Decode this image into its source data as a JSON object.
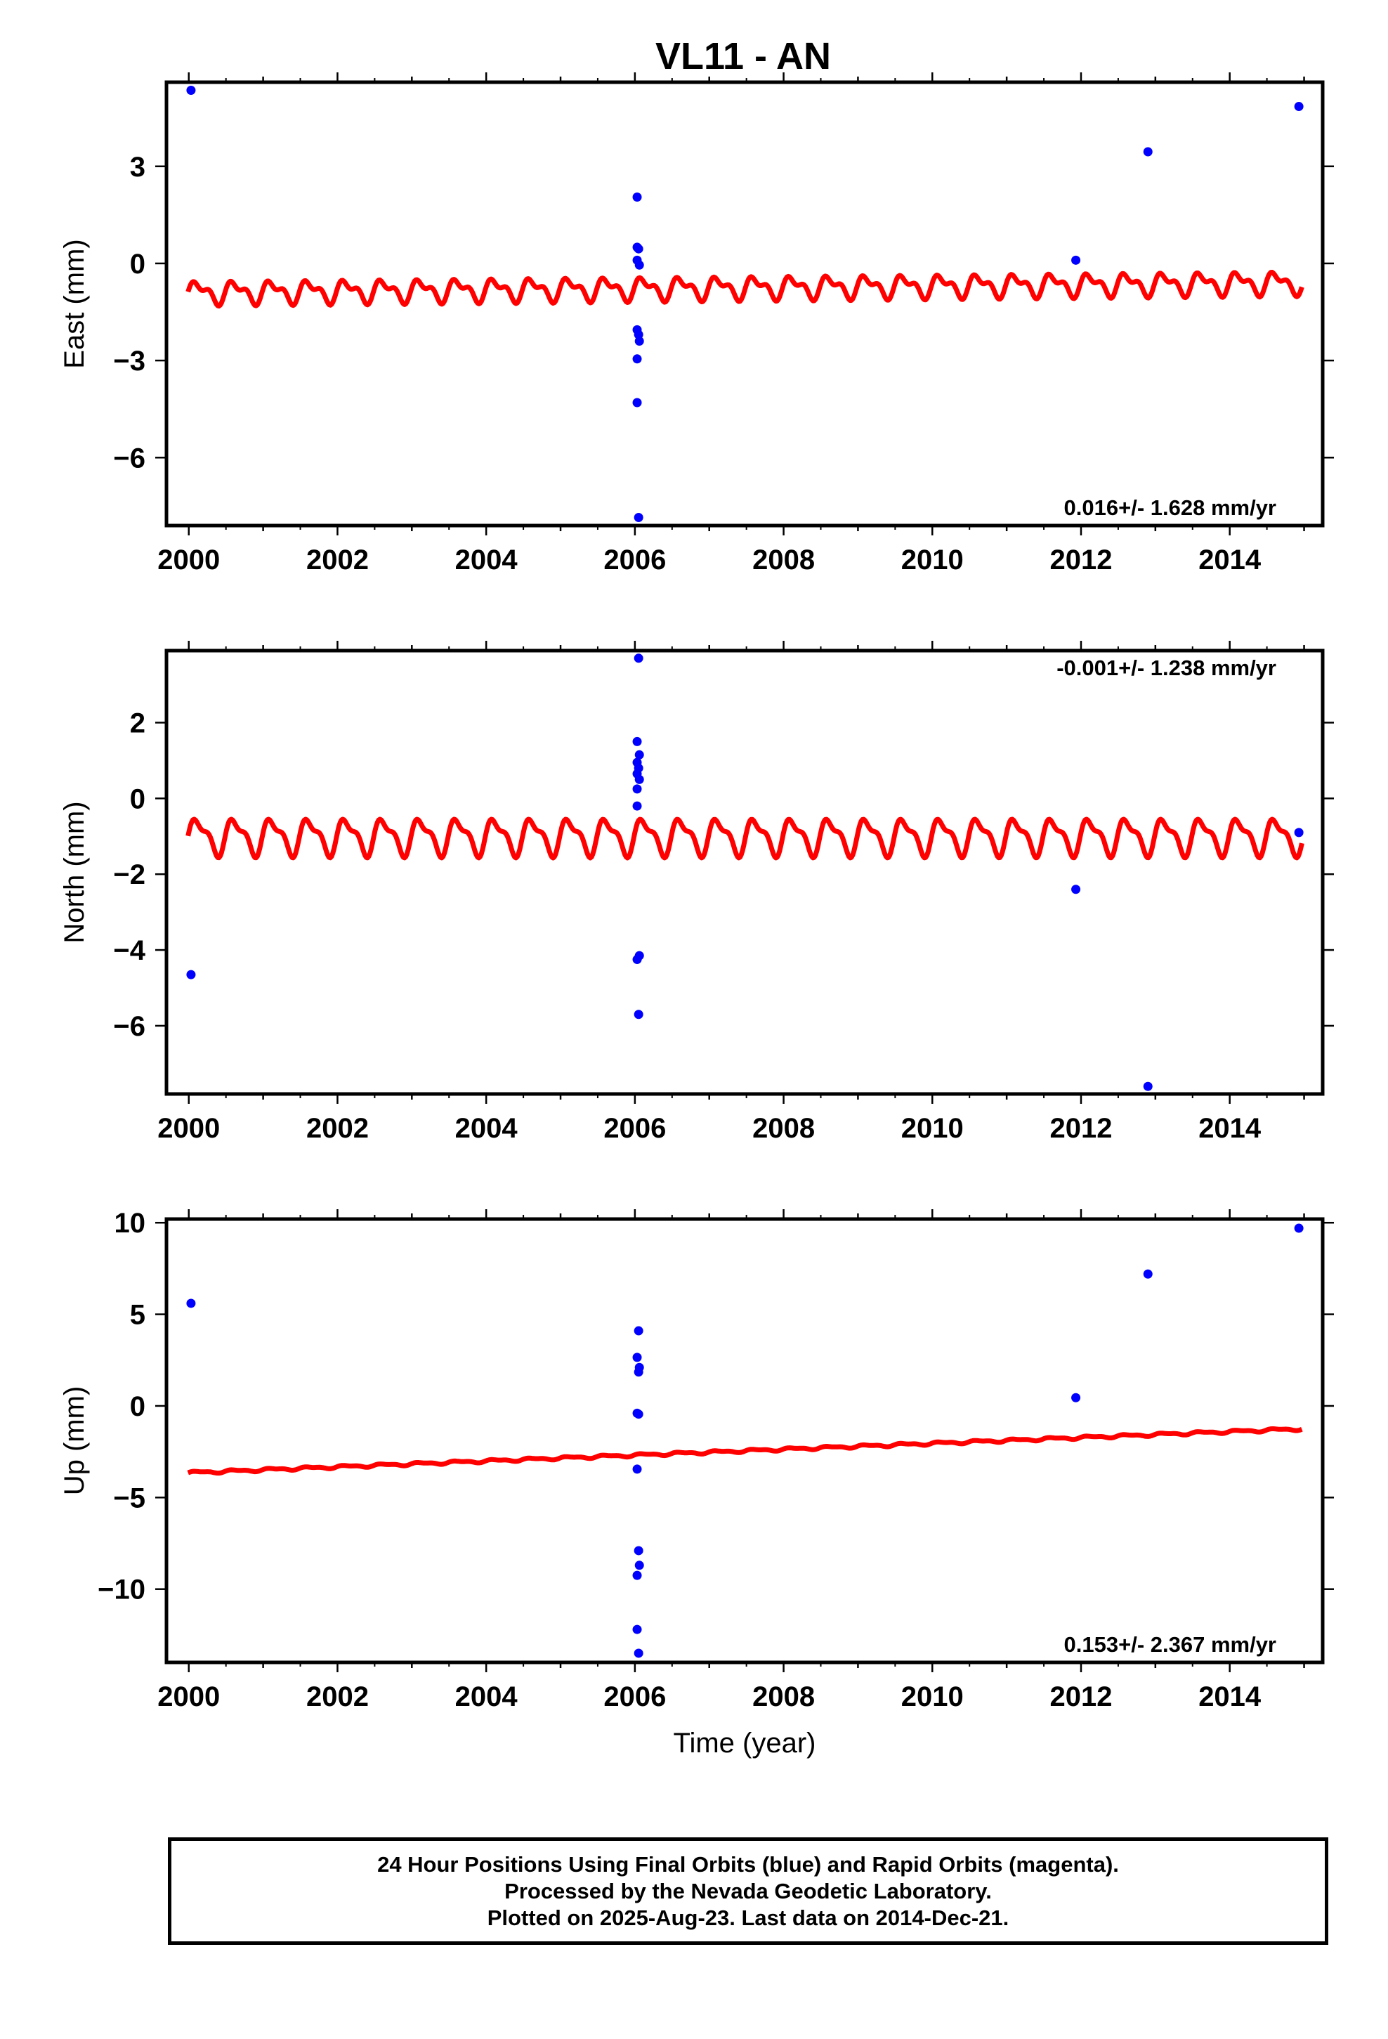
{
  "title": "VL11 - AN",
  "footer": {
    "line1": "24 Hour Positions Using Final Orbits (blue) and Rapid Orbits (magenta).",
    "line2": "Processed by the Nevada Geodetic Laboratory.",
    "line3": "Plotted on 2025-Aug-23. Last data on 2014-Dec-21."
  },
  "colors": {
    "points": "#0000ff",
    "model": "#ff0000",
    "frame": "#000000"
  },
  "chart_data": [
    {
      "type": "scatter",
      "ylabel": "East (mm)",
      "xlabel": "",
      "rate_label": "0.016+/- 1.628 mm/yr",
      "rate_position": "bottom-right",
      "xlim": [
        1999.7,
        2015.25
      ],
      "ylim": [
        -8.1,
        5.6
      ],
      "xticks": [
        2000,
        2002,
        2004,
        2006,
        2008,
        2010,
        2012,
        2014
      ],
      "yticks": [
        3,
        0,
        -3,
        -6
      ],
      "ytick_labels": [
        "3",
        "0",
        "−3",
        "−6"
      ],
      "points": [
        [
          2000.03,
          5.35
        ],
        [
          2006.03,
          2.05
        ],
        [
          2006.03,
          0.5
        ],
        [
          2006.05,
          0.45
        ],
        [
          2006.03,
          0.1
        ],
        [
          2006.06,
          -0.05
        ],
        [
          2006.03,
          -2.05
        ],
        [
          2006.05,
          -2.2
        ],
        [
          2006.06,
          -2.4
        ],
        [
          2006.03,
          -2.95
        ],
        [
          2006.03,
          -4.3
        ],
        [
          2006.05,
          -7.85
        ],
        [
          2011.93,
          0.1
        ],
        [
          2012.9,
          3.45
        ],
        [
          2014.93,
          4.85
        ]
      ],
      "model": {
        "start": 1999.99,
        "end": 2014.97,
        "offset_start": -0.9,
        "offset_end": -0.6,
        "annual": 0.28,
        "semiannual": 0.17
      }
    },
    {
      "type": "scatter",
      "ylabel": "North (mm)",
      "xlabel": "",
      "rate_label": "-0.001+/- 1.238 mm/yr",
      "rate_position": "top-right",
      "xlim": [
        1999.7,
        2015.25
      ],
      "ylim": [
        -7.8,
        3.9
      ],
      "xticks": [
        2000,
        2002,
        2004,
        2006,
        2008,
        2010,
        2012,
        2014
      ],
      "yticks": [
        2,
        0,
        -2,
        -4,
        -6
      ],
      "ytick_labels": [
        "2",
        "0",
        "−2",
        "−4",
        "−6"
      ],
      "points": [
        [
          2000.03,
          -4.65
        ],
        [
          2006.05,
          3.7
        ],
        [
          2006.03,
          1.5
        ],
        [
          2006.06,
          1.15
        ],
        [
          2006.03,
          0.95
        ],
        [
          2006.05,
          0.8
        ],
        [
          2006.03,
          0.65
        ],
        [
          2006.06,
          0.5
        ],
        [
          2006.03,
          0.25
        ],
        [
          2006.03,
          -0.2
        ],
        [
          2006.06,
          -4.15
        ],
        [
          2006.03,
          -4.25
        ],
        [
          2006.05,
          -5.7
        ],
        [
          2011.93,
          -2.4
        ],
        [
          2012.9,
          -7.6
        ],
        [
          2014.93,
          -0.9
        ]
      ],
      "model": {
        "start": 1999.99,
        "end": 2014.97,
        "offset_start": -1.0,
        "offset_end": -1.0,
        "annual": 0.42,
        "semiannual": 0.18
      }
    },
    {
      "type": "scatter",
      "ylabel": "Up (mm)",
      "xlabel": "Time (year)",
      "rate_label": "0.153+/- 2.367 mm/yr",
      "rate_position": "bottom-right",
      "xlim": [
        1999.7,
        2015.25
      ],
      "ylim": [
        -14.0,
        10.2
      ],
      "xticks": [
        2000,
        2002,
        2004,
        2006,
        2008,
        2010,
        2012,
        2014
      ],
      "yticks": [
        10,
        5,
        0,
        -5,
        -10
      ],
      "ytick_labels": [
        "10",
        "5",
        "0",
        "−5",
        "−10"
      ],
      "points": [
        [
          2000.03,
          5.6
        ],
        [
          2006.05,
          4.1
        ],
        [
          2006.03,
          2.65
        ],
        [
          2006.06,
          2.1
        ],
        [
          2006.05,
          1.85
        ],
        [
          2006.03,
          -0.4
        ],
        [
          2006.05,
          -0.45
        ],
        [
          2006.03,
          -3.45
        ],
        [
          2006.05,
          -7.9
        ],
        [
          2006.06,
          -8.7
        ],
        [
          2006.03,
          -9.25
        ],
        [
          2006.03,
          -12.2
        ],
        [
          2006.05,
          -13.5
        ],
        [
          2011.93,
          0.45
        ],
        [
          2012.9,
          7.2
        ],
        [
          2014.93,
          9.7
        ]
      ],
      "model": {
        "start": 1999.99,
        "end": 2014.97,
        "offset_start": -3.65,
        "offset_end": -1.25,
        "annual": 0.06,
        "semiannual": 0.03
      }
    }
  ]
}
